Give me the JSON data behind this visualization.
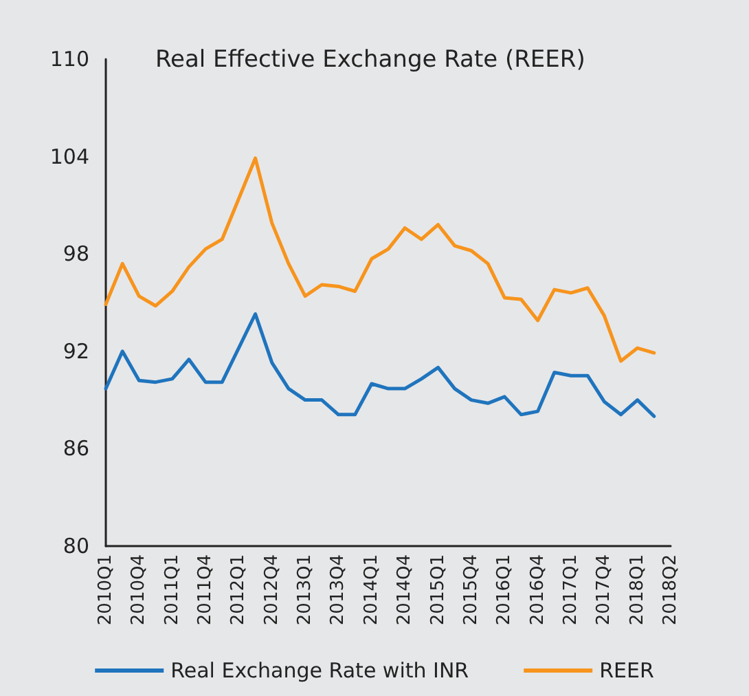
{
  "chart_data": {
    "type": "line",
    "title": "Real Effective Exchange Rate (REER)",
    "categories": [
      "2010Q1",
      null,
      "2010Q4",
      null,
      "2011Q1",
      null,
      "2011Q4",
      null,
      "2012Q1",
      null,
      "2012Q4",
      null,
      "2013Q1",
      null,
      "2013Q4",
      null,
      "2014Q1",
      null,
      "2014Q4",
      null,
      "2015Q1",
      null,
      "2015Q4",
      null,
      "2016Q1",
      null,
      "2016Q4",
      null,
      "2017Q1",
      null,
      "2017Q4",
      null,
      "2018Q1",
      null,
      "2018Q2"
    ],
    "series": [
      {
        "name": "Real Exchange Rate with INR",
        "color": "#1f74bd",
        "values": [
          89.7,
          92.0,
          90.2,
          90.1,
          90.3,
          91.5,
          90.1,
          90.1,
          92.2,
          94.3,
          91.3,
          89.7,
          89.0,
          89.0,
          88.1,
          88.1,
          90.0,
          89.7,
          89.7,
          90.3,
          91.0,
          89.7,
          89.0,
          88.8,
          89.2,
          88.1,
          88.3,
          90.7,
          90.5,
          90.5,
          88.9,
          88.1,
          89.0,
          88.0,
          null
        ]
      },
      {
        "name": "REER",
        "color": "#f7941d",
        "values": [
          94.9,
          97.4,
          95.4,
          94.8,
          95.7,
          97.2,
          98.3,
          98.9,
          101.4,
          103.9,
          99.9,
          97.4,
          95.4,
          96.1,
          96.0,
          95.7,
          97.7,
          98.3,
          99.6,
          98.9,
          99.8,
          98.5,
          98.2,
          97.4,
          95.3,
          95.2,
          93.9,
          95.8,
          95.6,
          95.9,
          94.2,
          91.4,
          92.2,
          91.9,
          null
        ]
      }
    ],
    "ylim": [
      80,
      110
    ],
    "yticks": [
      80,
      86,
      92,
      98,
      104,
      110
    ],
    "grid": false,
    "legend": "bottom",
    "marker": "none",
    "line_style": "solid"
  }
}
